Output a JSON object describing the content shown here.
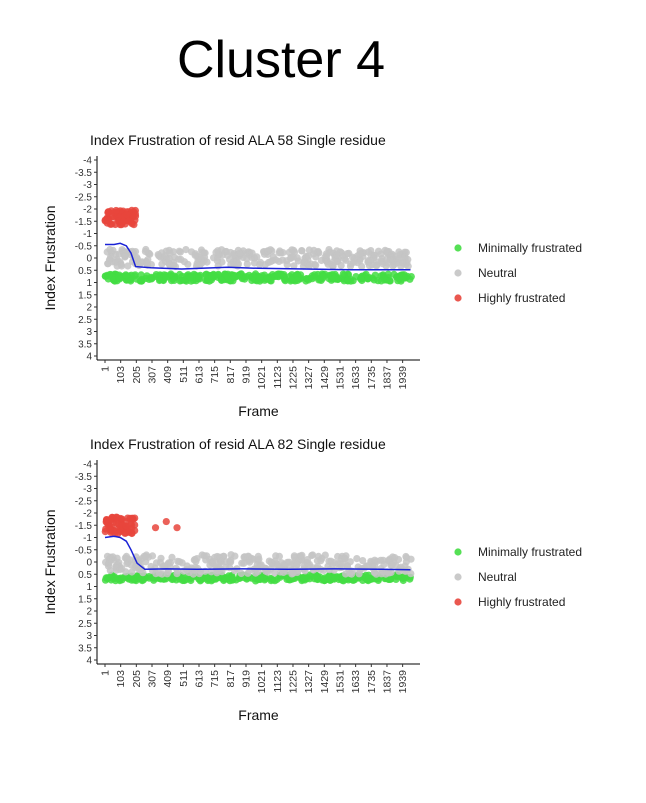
{
  "header": {
    "title": "Cluster 4"
  },
  "legend_colors": {
    "minimal": "#43dd43",
    "neutral": "#c4c4c4",
    "high": "#e8453c",
    "smooth_line": "#1a22d6"
  },
  "chart_data": [
    {
      "type": "scatter",
      "title": "Index Frustration of resid ALA 58 Single residue",
      "xlabel": "Frame",
      "ylabel": "Index Frustration",
      "x_range": [
        1,
        2000
      ],
      "ylim": [
        -4,
        4
      ],
      "y_reversed": true,
      "y_ticks": [
        "-4",
        "-3.5",
        "-3",
        "-2.5",
        "-2",
        "-1.5",
        "-1",
        "-0.5",
        "0",
        "0.5",
        "1",
        "1.5",
        "2",
        "2.5",
        "3",
        "3.5",
        "4"
      ],
      "x_ticks": [
        "1",
        "103",
        "205",
        "307",
        "409",
        "511",
        "613",
        "715",
        "817",
        "919",
        "1021",
        "1123",
        "1225",
        "1327",
        "1429",
        "1531",
        "1633",
        "1735",
        "1837",
        "1939"
      ],
      "legend": [
        "Minimally frustrated",
        "Neutral",
        "Highly frustrated"
      ],
      "legend_position": "right",
      "grid": false,
      "series": [
        {
          "name": "Minimally frustrated",
          "y_center": 0.8,
          "y_spread": 0.15,
          "x_start": 1,
          "x_end": 2000
        },
        {
          "name": "Neutral",
          "y_center": 0.0,
          "y_spread": 0.35,
          "x_start": 1,
          "x_end": 2000
        },
        {
          "name": "Highly frustrated",
          "y_center": -1.65,
          "y_spread": 0.3,
          "x_start": 1,
          "x_end": 200
        }
      ],
      "smooth": {
        "x": [
          1,
          60,
          100,
          140,
          170,
          200,
          300,
          500,
          800,
          1000,
          1300,
          1600,
          1900,
          1990
        ],
        "y": [
          -0.55,
          -0.55,
          -0.6,
          -0.5,
          -0.2,
          0.35,
          0.4,
          0.45,
          0.38,
          0.42,
          0.45,
          0.48,
          0.48,
          0.48
        ]
      }
    },
    {
      "type": "scatter",
      "title": "Index Frustration of resid ALA 82 Single residue",
      "xlabel": "Frame",
      "ylabel": "Index Frustration",
      "x_range": [
        1,
        2000
      ],
      "ylim": [
        -4,
        4
      ],
      "y_reversed": true,
      "y_ticks": [
        "-4",
        "-3.5",
        "-3",
        "-2.5",
        "-2",
        "-1.5",
        "-1",
        "-0.5",
        "0",
        "0.5",
        "1",
        "1.5",
        "2",
        "2.5",
        "3",
        "3.5",
        "4"
      ],
      "x_ticks": [
        "1",
        "103",
        "205",
        "307",
        "409",
        "511",
        "613",
        "715",
        "817",
        "919",
        "1021",
        "1123",
        "1225",
        "1327",
        "1429",
        "1531",
        "1633",
        "1735",
        "1837",
        "1939"
      ],
      "legend": [
        "Minimally frustrated",
        "Neutral",
        "Highly frustrated"
      ],
      "legend_position": "right",
      "grid": false,
      "series": [
        {
          "name": "Minimally frustrated",
          "y_center": 0.65,
          "y_spread": 0.12,
          "x_start": 1,
          "x_end": 2000
        },
        {
          "name": "Neutral",
          "y_center": 0.1,
          "y_spread": 0.4,
          "x_start": 1,
          "x_end": 2000
        },
        {
          "name": "Highly frustrated",
          "y_center": -1.5,
          "y_spread": 0.35,
          "x_start": 1,
          "x_end": 200
        }
      ],
      "extra_high_points": [
        {
          "x": 330,
          "y": -1.4
        },
        {
          "x": 400,
          "y": -1.65
        },
        {
          "x": 470,
          "y": -1.4
        }
      ],
      "smooth": {
        "x": [
          1,
          60,
          100,
          140,
          170,
          210,
          260,
          400,
          600,
          900,
          1200,
          1500,
          1800,
          1990
        ],
        "y": [
          -1.0,
          -1.05,
          -1.0,
          -0.85,
          -0.5,
          0.05,
          0.3,
          0.28,
          0.3,
          0.28,
          0.3,
          0.28,
          0.3,
          0.32
        ]
      }
    }
  ]
}
